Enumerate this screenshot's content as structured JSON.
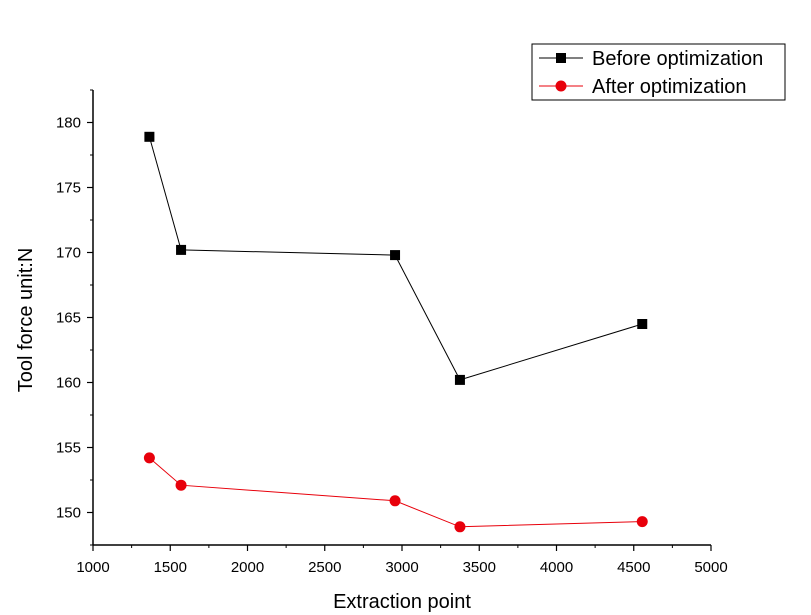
{
  "chart_data": {
    "type": "line",
    "xlabel": "Extraction point",
    "ylabel": "Tool force  unit:N",
    "xlim": [
      1000,
      5000
    ],
    "ylim": [
      147.5,
      182.5
    ],
    "xticks": [
      1000,
      1500,
      2000,
      2500,
      3000,
      3500,
      4000,
      4500,
      5000
    ],
    "yticks": [
      150,
      155,
      160,
      165,
      170,
      175,
      180
    ],
    "legend_position": "top-right",
    "grid": false,
    "series": [
      {
        "name": "Before optimization",
        "color": "#000000",
        "marker": "square",
        "x": [
          1365,
          1570,
          2955,
          3375,
          4555
        ],
        "y": [
          178.9,
          170.2,
          169.8,
          160.2,
          164.5
        ]
      },
      {
        "name": "After optimization",
        "color": "#e8000b",
        "marker": "circle",
        "x": [
          1365,
          1570,
          2955,
          3375,
          4555
        ],
        "y": [
          154.2,
          152.1,
          150.9,
          148.9,
          149.3
        ]
      }
    ]
  }
}
